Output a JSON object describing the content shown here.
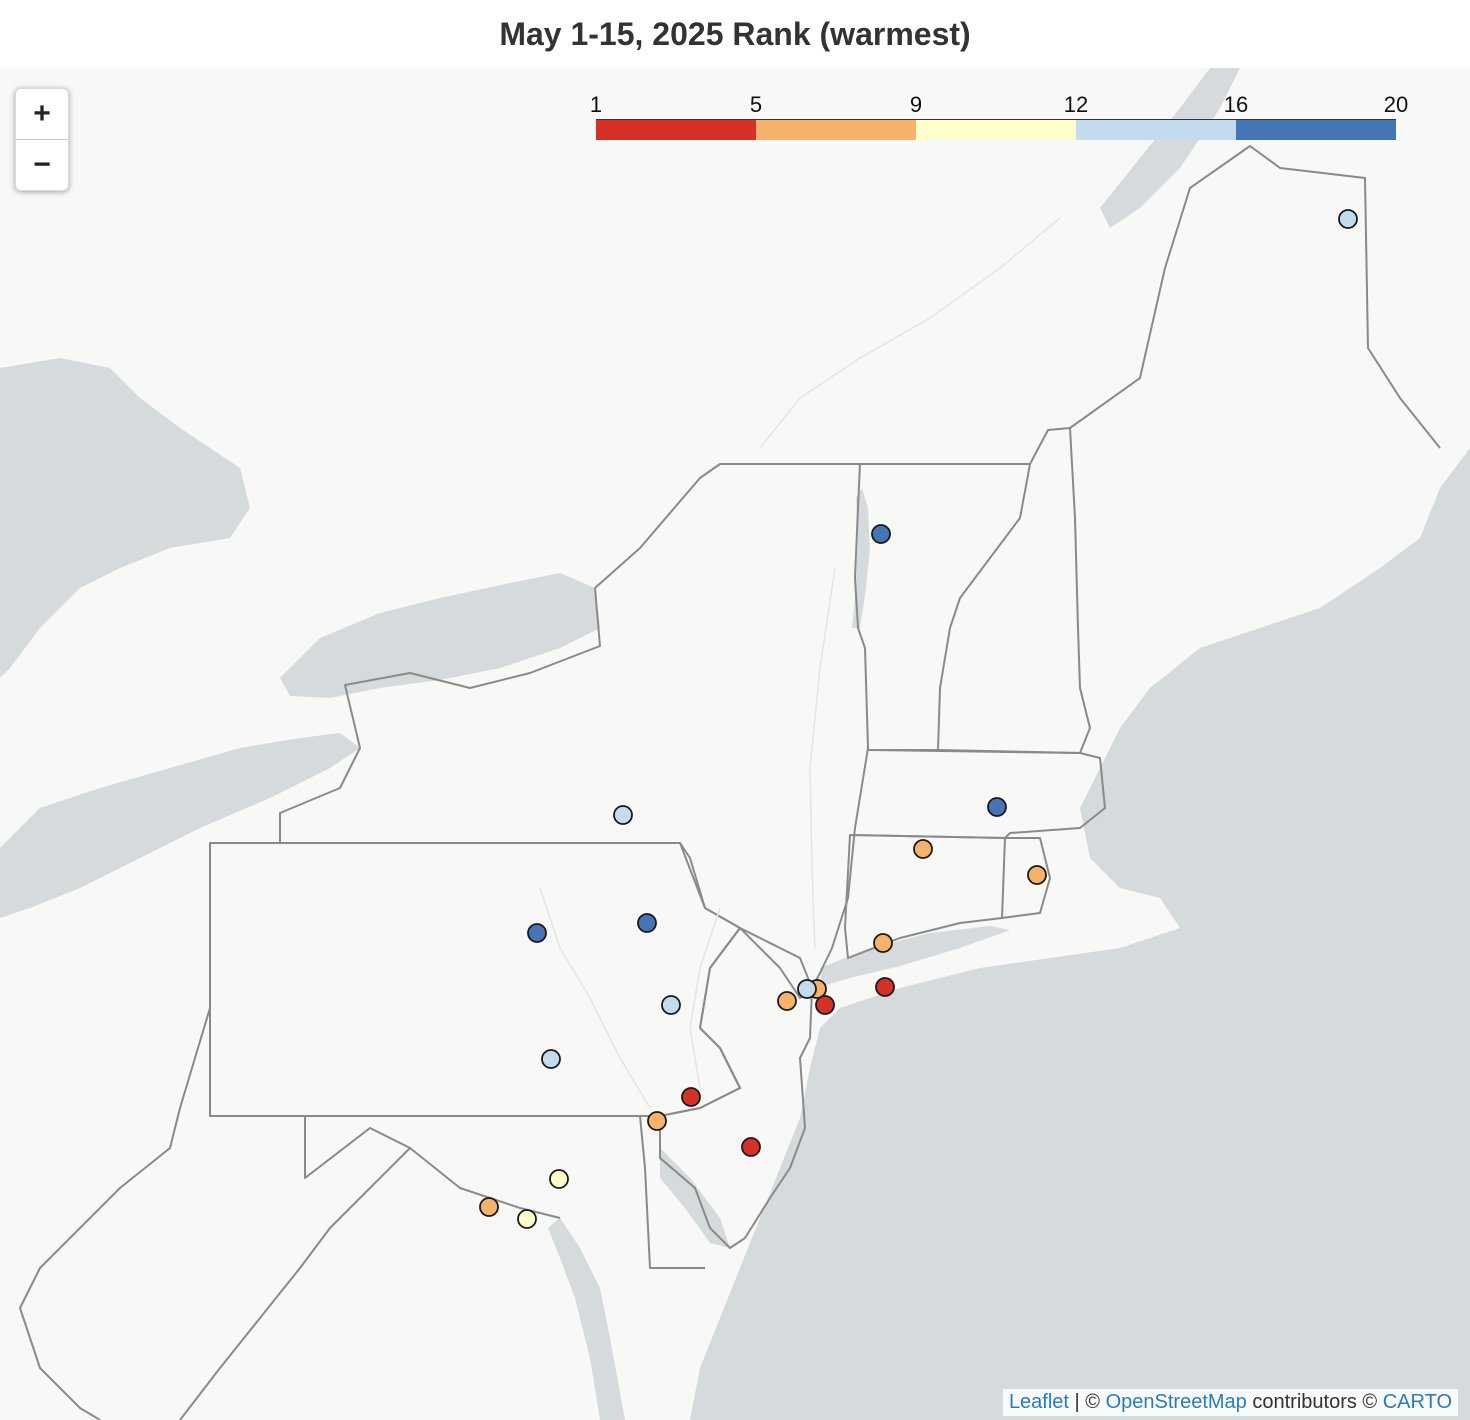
{
  "title": "May 1-15, 2025 Rank (warmest)",
  "zoom": {
    "in_label": "+",
    "out_label": "−"
  },
  "legend": {
    "ticks": [
      "1",
      "5",
      "9",
      "12",
      "16",
      "20"
    ],
    "colors": [
      "#d73027",
      "#f6b26b",
      "#ffffcc",
      "#c2dcee",
      "#4575b4"
    ]
  },
  "attribution": {
    "leaflet": "Leaflet",
    "sep1": " | © ",
    "osm": "OpenStreetMap",
    "contrib": " contributors © ",
    "carto": "CARTO"
  },
  "colors": {
    "land": "#f8f8f7",
    "water": "#d5dadd",
    "border": "#8a8a8a",
    "rank_1_4": "#d73027",
    "rank_5_8": "#f6b26b",
    "rank_9_11": "#ffffcc",
    "rank_12_15": "#c2dcee",
    "rank_16_20": "#4575b4"
  },
  "stations": [
    {
      "id": "caribou-me",
      "cls": "rank_12_15"
    },
    {
      "id": "burlington-vt",
      "cls": "rank_16_20"
    },
    {
      "id": "worcester-ma",
      "cls": "rank_16_20"
    },
    {
      "id": "hartford-ct",
      "cls": "rank_5_8"
    },
    {
      "id": "providence-ri",
      "cls": "rank_5_8"
    },
    {
      "id": "binghamton-ny",
      "cls": "rank_12_15"
    },
    {
      "id": "williamsport-pa",
      "cls": "rank_16_20"
    },
    {
      "id": "wilkes-barre-pa",
      "cls": "rank_16_20"
    },
    {
      "id": "bridgeport-ct",
      "cls": "rank_5_8"
    },
    {
      "id": "islip-ny",
      "cls": "rank_1_4"
    },
    {
      "id": "laguardia-ny",
      "cls": "rank_5_8"
    },
    {
      "id": "central-park-ny",
      "cls": "rank_12_15"
    },
    {
      "id": "newark-nj",
      "cls": "rank_5_8"
    },
    {
      "id": "jfk-ny",
      "cls": "rank_1_4"
    },
    {
      "id": "allentown-pa",
      "cls": "rank_12_15"
    },
    {
      "id": "harrisburg-pa",
      "cls": "rank_12_15"
    },
    {
      "id": "philadelphia-pa",
      "cls": "rank_1_4"
    },
    {
      "id": "wilmington-de",
      "cls": "rank_5_8"
    },
    {
      "id": "atlantic-city-nj",
      "cls": "rank_1_4"
    },
    {
      "id": "baltimore-md",
      "cls": "rank_9_11"
    },
    {
      "id": "dulles-va",
      "cls": "rank_5_8"
    },
    {
      "id": "washington-dc",
      "cls": "rank_9_11"
    }
  ]
}
